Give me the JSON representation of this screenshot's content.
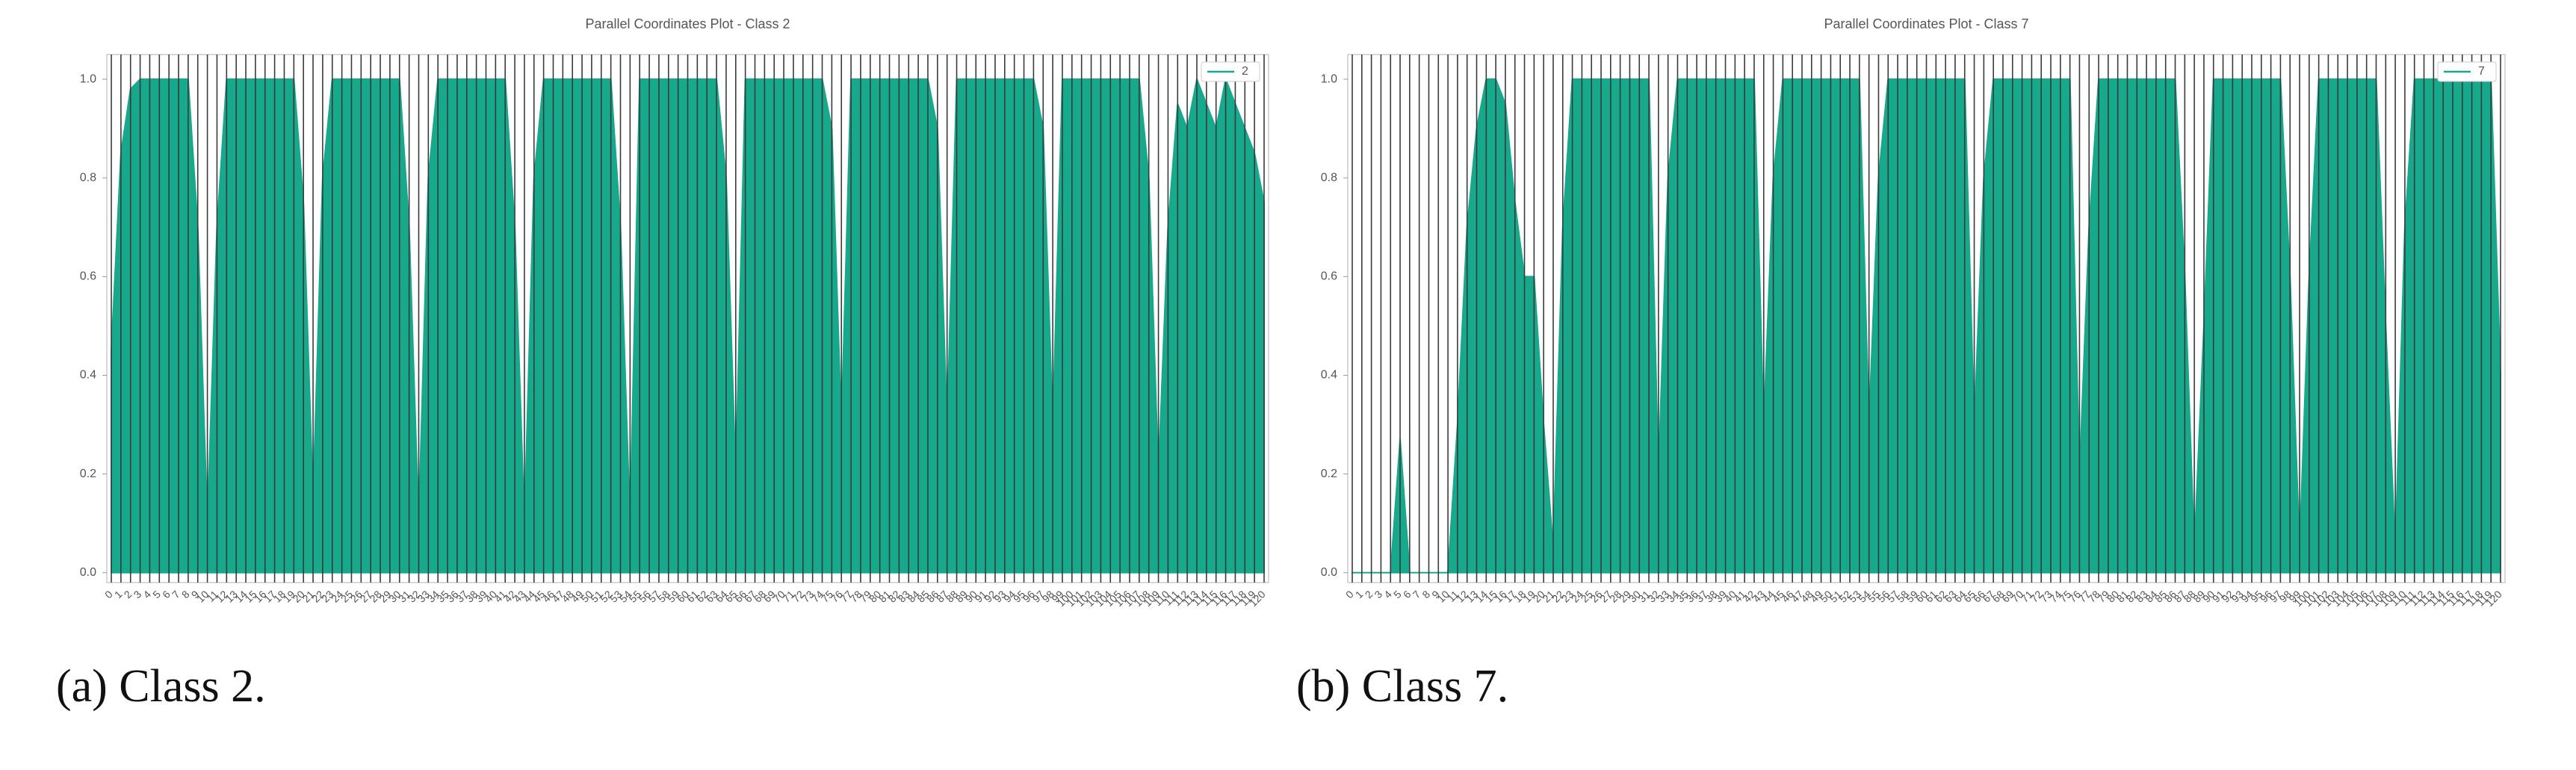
{
  "chart_data": [
    {
      "type": "parallel",
      "title": "Parallel Coordinates Plot - Class 2",
      "categories": [
        "0",
        "1",
        "2",
        "3",
        "4",
        "5",
        "6",
        "7",
        "8",
        "9",
        "10",
        "11",
        "12",
        "13",
        "14",
        "15",
        "16",
        "17",
        "18",
        "19",
        "20",
        "21",
        "22",
        "23",
        "24",
        "25",
        "26",
        "27",
        "28",
        "29",
        "30",
        "31",
        "32",
        "33",
        "34",
        "35",
        "36",
        "37",
        "38",
        "39",
        "40",
        "41",
        "42",
        "43",
        "44",
        "45",
        "46",
        "47",
        "48",
        "49",
        "50",
        "51",
        "52",
        "53",
        "54",
        "55",
        "56",
        "57",
        "58",
        "59",
        "60",
        "61",
        "62",
        "63",
        "64",
        "65",
        "66",
        "67",
        "68",
        "69",
        "70",
        "71",
        "72",
        "73",
        "74",
        "75",
        "76",
        "77",
        "78",
        "79",
        "80",
        "81",
        "82",
        "83",
        "84",
        "85",
        "86",
        "87",
        "88",
        "89",
        "90",
        "91",
        "92",
        "93",
        "94",
        "95",
        "96",
        "97",
        "98",
        "99",
        "100",
        "101",
        "102",
        "103",
        "104",
        "105",
        "106",
        "107",
        "108",
        "109",
        "110",
        "111",
        "112",
        "113",
        "114",
        "115",
        "116",
        "117",
        "118",
        "119",
        "120"
      ],
      "series": [
        {
          "name": "2",
          "color": "#17a98c",
          "values": [
            0.45,
            0.85,
            0.98,
            1,
            1,
            1,
            1,
            1,
            1,
            0.7,
            0.1,
            0.7,
            1,
            1,
            1,
            1,
            1,
            1,
            1,
            1,
            0.75,
            0.15,
            0.8,
            1,
            1,
            1,
            1,
            1,
            1,
            1,
            1,
            0.7,
            0.1,
            0.8,
            1,
            1,
            1,
            1,
            1,
            1,
            1,
            1,
            0.7,
            0.1,
            0.8,
            1,
            1,
            1,
            1,
            1,
            1,
            1,
            1,
            0.7,
            0.1,
            1,
            1,
            1,
            1,
            1,
            1,
            1,
            1,
            1,
            0.8,
            0.2,
            1,
            1,
            1,
            1,
            1,
            1,
            1,
            1,
            1,
            0.9,
            0.3,
            1,
            1,
            1,
            1,
            1,
            1,
            1,
            1,
            1,
            0.9,
            0.3,
            1,
            1,
            1,
            1,
            1,
            1,
            1,
            1,
            1,
            0.9,
            0.3,
            1,
            1,
            1,
            1,
            1,
            1,
            1,
            1,
            1,
            0.8,
            0.2,
            0.7,
            0.95,
            0.9,
            1,
            0.95,
            0.9,
            1,
            0.95,
            0.9,
            0.85,
            0.75
          ]
        }
      ],
      "ylim": [
        -0.02,
        1.05
      ],
      "yticks": [
        {
          "value": 0,
          "label": "0.0"
        },
        {
          "value": 0.2,
          "label": "0.2"
        },
        {
          "value": 0.4,
          "label": "0.4"
        },
        {
          "value": 0.6,
          "label": "0.6"
        },
        {
          "value": 0.8,
          "label": "0.8"
        },
        {
          "value": 1,
          "label": "1.0"
        }
      ],
      "legend": "upper right"
    },
    {
      "type": "parallel",
      "title": "Parallel Coordinates Plot - Class 7",
      "categories": [
        "0",
        "1",
        "2",
        "3",
        "4",
        "5",
        "6",
        "7",
        "8",
        "9",
        "10",
        "11",
        "12",
        "13",
        "14",
        "15",
        "16",
        "17",
        "18",
        "19",
        "20",
        "21",
        "22",
        "23",
        "24",
        "25",
        "26",
        "27",
        "28",
        "29",
        "30",
        "31",
        "32",
        "33",
        "34",
        "35",
        "36",
        "37",
        "38",
        "39",
        "40",
        "41",
        "42",
        "43",
        "44",
        "45",
        "46",
        "47",
        "48",
        "49",
        "50",
        "51",
        "52",
        "53",
        "54",
        "55",
        "56",
        "57",
        "58",
        "59",
        "60",
        "61",
        "62",
        "63",
        "64",
        "65",
        "66",
        "67",
        "68",
        "69",
        "70",
        "71",
        "72",
        "73",
        "74",
        "75",
        "76",
        "77",
        "78",
        "79",
        "80",
        "81",
        "82",
        "83",
        "84",
        "85",
        "86",
        "87",
        "88",
        "89",
        "90",
        "91",
        "92",
        "93",
        "94",
        "95",
        "96",
        "97",
        "98",
        "99",
        "100",
        "101",
        "102",
        "103",
        "104",
        "105",
        "106",
        "107",
        "108",
        "109",
        "110",
        "111",
        "112",
        "113",
        "114",
        "115",
        "116",
        "117",
        "118",
        "119",
        "120"
      ],
      "series": [
        {
          "name": "7",
          "color": "#17a98c",
          "values": [
            0,
            0,
            0,
            0,
            0,
            0.27,
            0,
            0,
            0,
            0,
            0,
            0.3,
            0.7,
            0.9,
            1,
            1,
            0.95,
            0.75,
            0.6,
            0.6,
            0.3,
            0.05,
            0.7,
            1,
            1,
            1,
            1,
            1,
            1,
            1,
            1,
            1,
            0.2,
            0.8,
            1,
            1,
            1,
            1,
            1,
            1,
            1,
            1,
            1,
            0.3,
            0.8,
            1,
            1,
            1,
            1,
            1,
            1,
            1,
            1,
            1,
            0.3,
            0.8,
            1,
            1,
            1,
            1,
            1,
            1,
            1,
            1,
            1,
            0.3,
            0.8,
            1,
            1,
            1,
            1,
            1,
            1,
            1,
            1,
            1,
            0.2,
            0.7,
            1,
            1,
            1,
            1,
            1,
            1,
            1,
            1,
            1,
            0.6,
            0.05,
            0.5,
            1,
            1,
            1,
            1,
            1,
            1,
            1,
            1,
            0.6,
            0.05,
            0.6,
            1,
            1,
            1,
            1,
            1,
            1,
            1,
            0.5,
            0.05,
            0.7,
            1,
            1,
            1,
            1,
            1,
            1,
            1,
            1,
            1,
            0.4
          ]
        }
      ],
      "ylim": [
        -0.02,
        1.05
      ],
      "yticks": [
        {
          "value": 0,
          "label": "0.0"
        },
        {
          "value": 0.2,
          "label": "0.2"
        },
        {
          "value": 0.4,
          "label": "0.4"
        },
        {
          "value": 0.6,
          "label": "0.6"
        },
        {
          "value": 0.8,
          "label": "0.8"
        },
        {
          "value": 1,
          "label": "1.0"
        }
      ],
      "legend": "upper right"
    }
  ],
  "captions": [
    "(a) Class 2.",
    "(b) Class 7."
  ]
}
